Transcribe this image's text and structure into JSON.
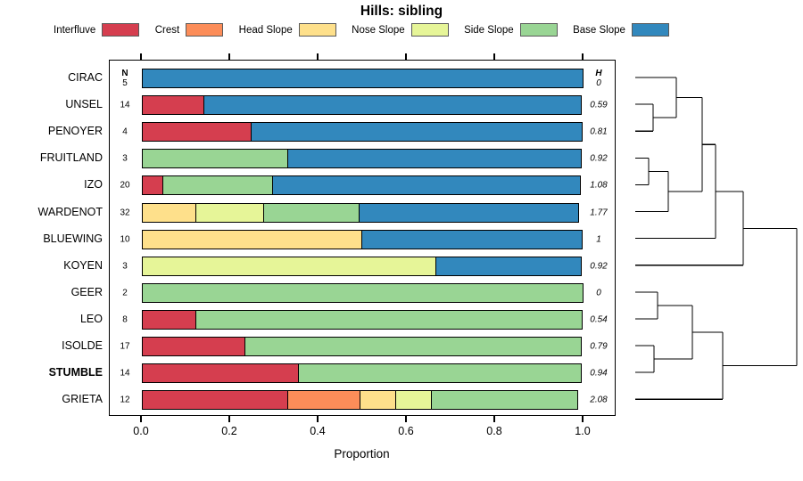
{
  "title": "Hills: sibling",
  "legend": {
    "items": [
      {
        "label": "Interfluve",
        "color": "#d53e4f"
      },
      {
        "label": "Crest",
        "color": "#fc8d59"
      },
      {
        "label": "Head Slope",
        "color": "#fee08b"
      },
      {
        "label": "Nose Slope",
        "color": "#e6f598"
      },
      {
        "label": "Side Slope",
        "color": "#99d594"
      },
      {
        "label": "Base Slope",
        "color": "#3288bd"
      }
    ]
  },
  "columns": {
    "n_header": "N",
    "h_header": "H"
  },
  "axis": {
    "label": "Proportion",
    "ticks": [
      "0.0",
      "0.2",
      "0.4",
      "0.6",
      "0.8",
      "1.0"
    ]
  },
  "chart_data": {
    "type": "bar",
    "stacked": true,
    "orientation": "horizontal",
    "title": "Hills: sibling",
    "xlabel": "Proportion",
    "xlim": [
      0,
      1
    ],
    "xticks": [
      0,
      0.2,
      0.4,
      0.6,
      0.8,
      1.0
    ],
    "classes": [
      "Interfluve",
      "Crest",
      "Head Slope",
      "Nose Slope",
      "Side Slope",
      "Base Slope"
    ],
    "colors": [
      "#d53e4f",
      "#fc8d59",
      "#fee08b",
      "#e6f598",
      "#99d594",
      "#3288bd"
    ],
    "rows": [
      {
        "label": "CIRAC",
        "bold": false,
        "n": 5,
        "h": "0",
        "segments": [
          [
            "Base Slope",
            1.0
          ]
        ]
      },
      {
        "label": "UNSEL",
        "bold": false,
        "n": 14,
        "h": "0.59",
        "segments": [
          [
            "Interfluve",
            0.143
          ],
          [
            "Base Slope",
            0.857
          ]
        ]
      },
      {
        "label": "PENOYER",
        "bold": false,
        "n": 4,
        "h": "0.81",
        "segments": [
          [
            "Interfluve",
            0.25
          ],
          [
            "Base Slope",
            0.75
          ]
        ]
      },
      {
        "label": "FRUITLAND",
        "bold": false,
        "n": 3,
        "h": "0.92",
        "segments": [
          [
            "Side Slope",
            0.333
          ],
          [
            "Base Slope",
            0.667
          ]
        ]
      },
      {
        "label": "IZO",
        "bold": false,
        "n": 20,
        "h": "1.08",
        "segments": [
          [
            "Interfluve",
            0.05
          ],
          [
            "Side Slope",
            0.25
          ],
          [
            "Base Slope",
            0.7
          ]
        ]
      },
      {
        "label": "WARDENOT",
        "bold": false,
        "n": 32,
        "h": "1.77",
        "segments": [
          [
            "Head Slope",
            0.125
          ],
          [
            "Nose Slope",
            0.156
          ],
          [
            "Side Slope",
            0.219
          ],
          [
            "Base Slope",
            0.5
          ]
        ]
      },
      {
        "label": "BLUEWING",
        "bold": false,
        "n": 10,
        "h": "1",
        "segments": [
          [
            "Head Slope",
            0.5
          ],
          [
            "Base Slope",
            0.5
          ]
        ]
      },
      {
        "label": "KOYEN",
        "bold": false,
        "n": 3,
        "h": "0.92",
        "segments": [
          [
            "Nose Slope",
            0.667
          ],
          [
            "Base Slope",
            0.333
          ]
        ]
      },
      {
        "label": "GEER",
        "bold": false,
        "n": 2,
        "h": "0",
        "segments": [
          [
            "Side Slope",
            1.0
          ]
        ]
      },
      {
        "label": "LEO",
        "bold": false,
        "n": 8,
        "h": "0.54",
        "segments": [
          [
            "Interfluve",
            0.125
          ],
          [
            "Side Slope",
            0.875
          ]
        ]
      },
      {
        "label": "ISOLDE",
        "bold": false,
        "n": 17,
        "h": "0.79",
        "segments": [
          [
            "Interfluve",
            0.235
          ],
          [
            "Side Slope",
            0.765
          ]
        ]
      },
      {
        "label": "STUMBLE",
        "bold": true,
        "n": 14,
        "h": "0.94",
        "segments": [
          [
            "Interfluve",
            0.357
          ],
          [
            "Side Slope",
            0.643
          ]
        ]
      },
      {
        "label": "GRIETA",
        "bold": false,
        "n": 12,
        "h": "2.08",
        "segments": [
          [
            "Interfluve",
            0.333
          ],
          [
            "Crest",
            0.167
          ],
          [
            "Head Slope",
            0.083
          ],
          [
            "Nose Slope",
            0.084
          ],
          [
            "Side Slope",
            0.333
          ]
        ]
      }
    ],
    "dendrogram": {
      "side": "right",
      "leaf_x": 22,
      "merges": [
        {
          "a": "L1",
          "b": "L2",
          "x": 42
        },
        {
          "a": "L0",
          "b": "M0",
          "x": 68
        },
        {
          "a": "L3",
          "b": "L4",
          "x": 37
        },
        {
          "a": "M2",
          "b": "L5",
          "x": 59
        },
        {
          "a": "M1",
          "b": "M3",
          "x": 97
        },
        {
          "a": "M4",
          "b": "L6",
          "x": 112
        },
        {
          "a": "M5",
          "b": "L7",
          "x": 143
        },
        {
          "a": "L8",
          "b": "L9",
          "x": 47
        },
        {
          "a": "L10",
          "b": "L11",
          "x": 43
        },
        {
          "a": "M7",
          "b": "M8",
          "x": 86
        },
        {
          "a": "M9",
          "b": "L12",
          "x": 120
        },
        {
          "a": "M6",
          "b": "M10",
          "x": 203
        }
      ]
    }
  }
}
